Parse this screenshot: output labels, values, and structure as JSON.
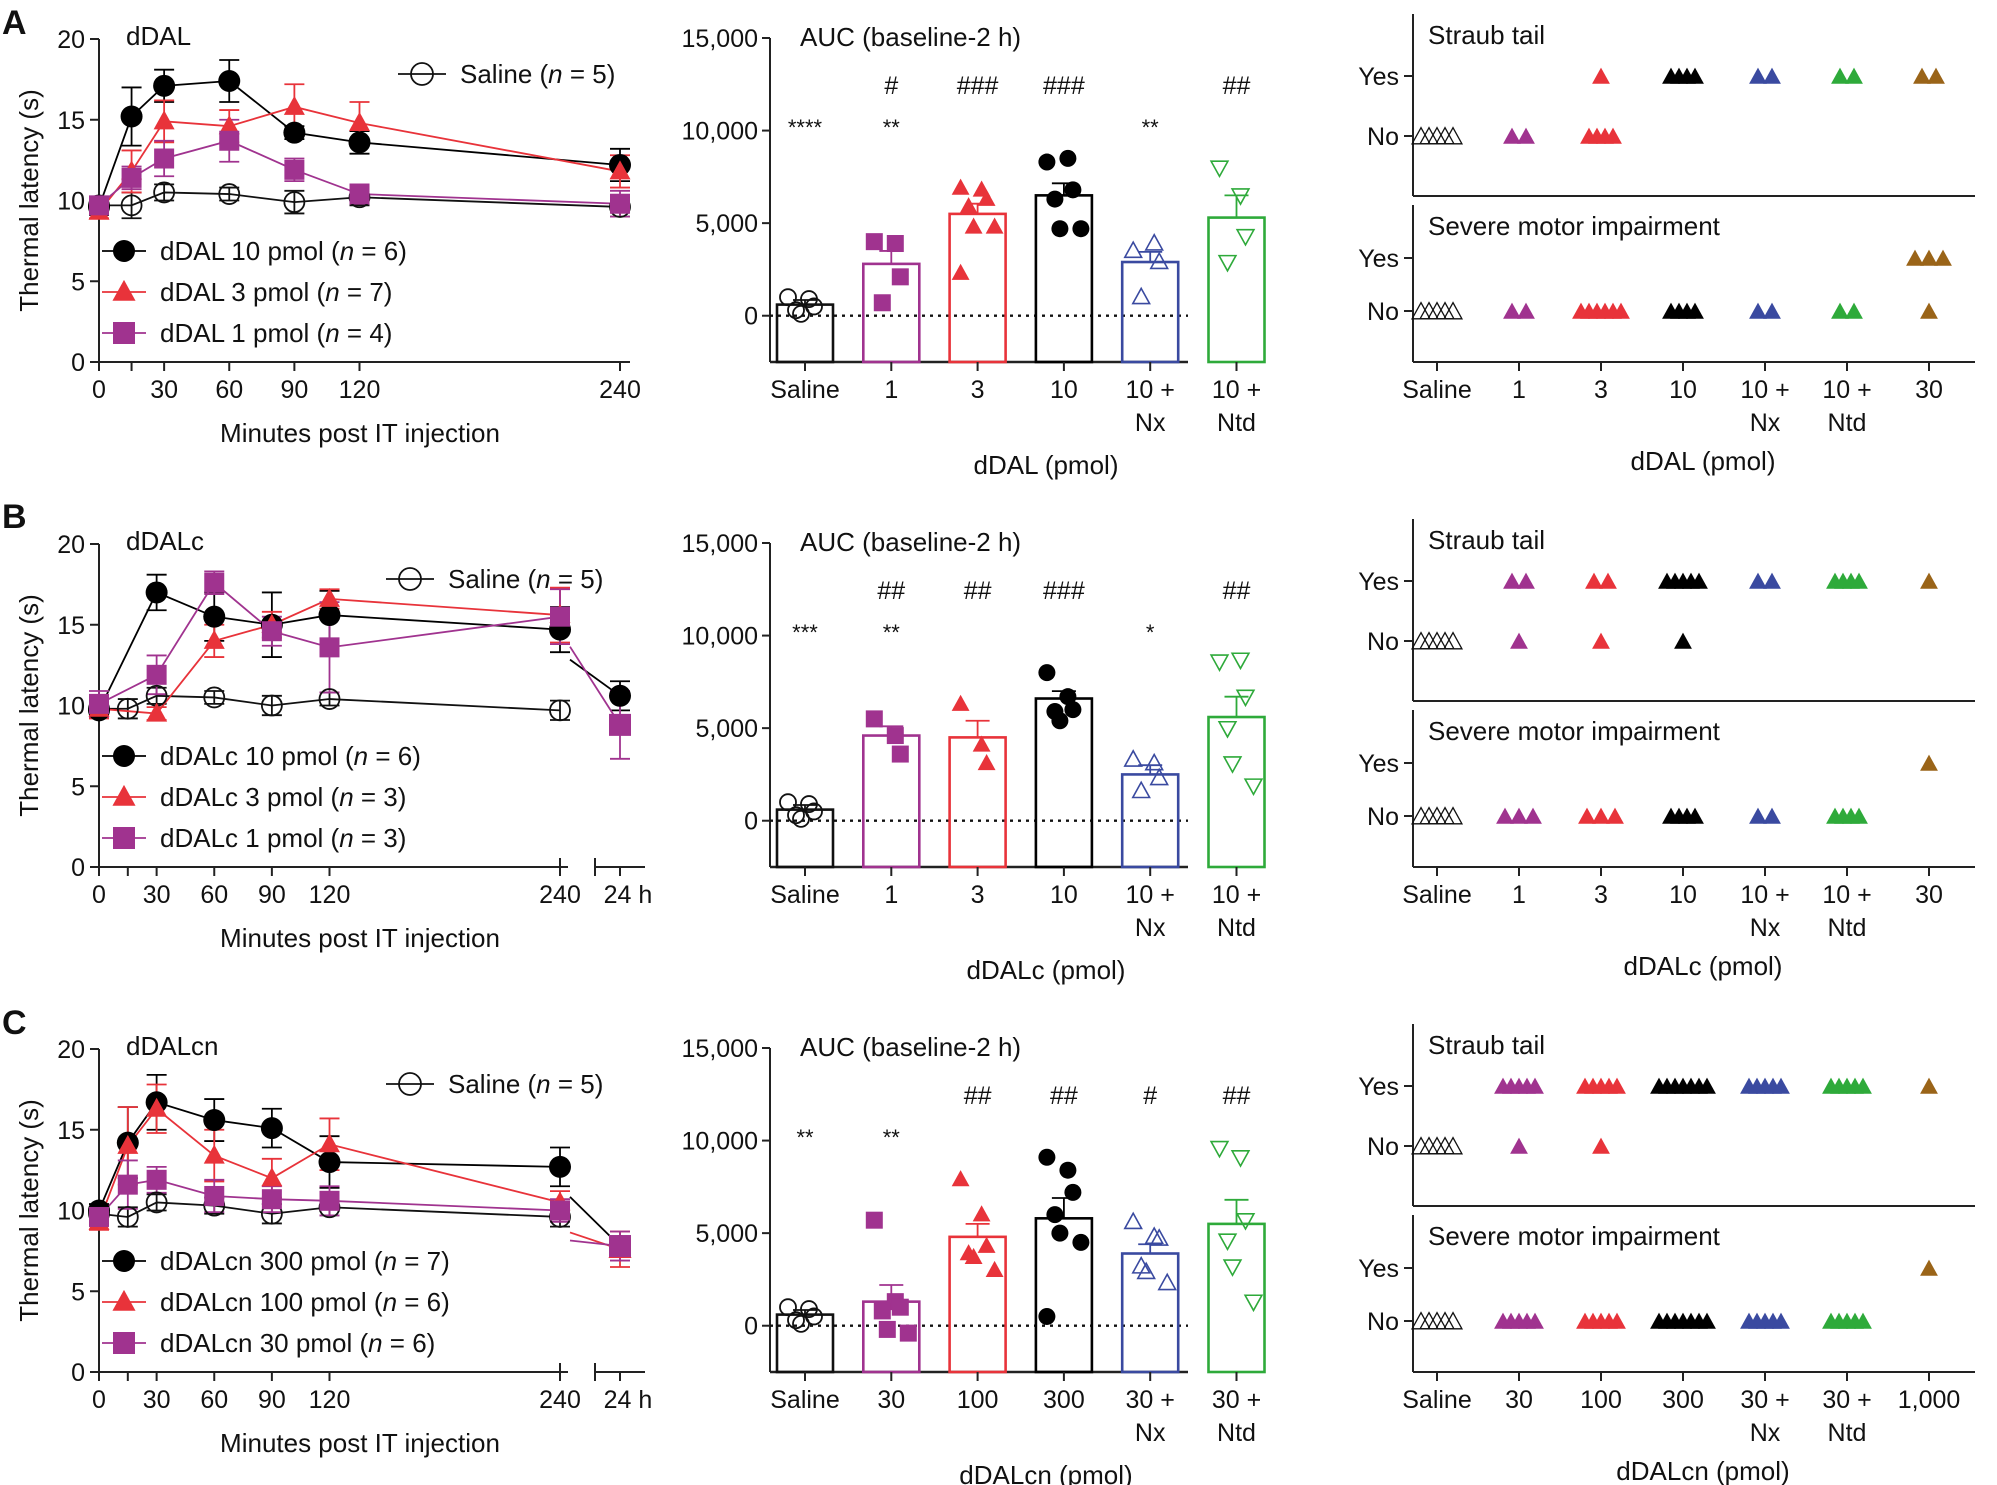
{
  "colors": {
    "saline": "#111111",
    "low": "#a0338f",
    "mid": "#e8333a",
    "high": "#000000",
    "nx": "#3a4aa0",
    "ntd": "#2eaa3a",
    "top": "#9a6418"
  },
  "chart_data": [
    {
      "panel": "A",
      "type": "line",
      "title": "dDAL",
      "xlabel": "Minutes post  IT injection",
      "ylabel": "Thermal latency (s)",
      "ylim": [
        0,
        20
      ],
      "yticks": [
        "0",
        "5",
        "10",
        "15",
        "20"
      ],
      "x_ticks": [
        0,
        15,
        30,
        60,
        90,
        120,
        240
      ],
      "x_tick_labels": [
        "0",
        "",
        "30",
        "60",
        "90",
        "120",
        "240"
      ],
      "has_24h": false,
      "legend_top": "top-right",
      "series": [
        {
          "name": "Saline",
          "n": "5",
          "label": "Saline (",
          "italic": "n",
          "suffix": " = 5)",
          "color_key": "saline",
          "marker": "open-circle",
          "x": [
            0,
            15,
            30,
            60,
            90,
            120,
            240
          ],
          "y": [
            9.7,
            9.7,
            10.5,
            10.4,
            9.9,
            10.2,
            9.6
          ],
          "err": [
            0.5,
            0.8,
            0.5,
            0.4,
            0.7,
            0.5,
            0.6
          ]
        },
        {
          "name": "dDAL 10 pmol",
          "label": "dDAL 10 pmol (",
          "italic": "n",
          "suffix": " = 6)",
          "color_key": "high",
          "marker": "circle",
          "x": [
            0,
            15,
            30,
            60,
            90,
            120,
            240
          ],
          "y": [
            9.6,
            15.2,
            17.1,
            17.4,
            14.2,
            13.6,
            12.2
          ],
          "err": [
            0.5,
            1.8,
            1.0,
            1.3,
            0.4,
            0.7,
            1.0
          ]
        },
        {
          "name": "dDAL 3 pmol",
          "label": "dDAL 3 pmol (",
          "italic": "n",
          "suffix": " = 7)",
          "color_key": "mid",
          "marker": "triangle",
          "x": [
            0,
            15,
            30,
            60,
            90,
            120,
            240
          ],
          "y": [
            9.3,
            11.8,
            14.9,
            14.6,
            15.8,
            14.8,
            11.8
          ],
          "err": [
            0.4,
            1.3,
            1.3,
            1.0,
            1.4,
            1.3,
            1.0
          ]
        },
        {
          "name": "dDAL 1 pmol",
          "label": "dDAL 1 pmol (",
          "italic": "n",
          "suffix": " = 4)",
          "color_key": "low",
          "marker": "square",
          "x": [
            0,
            15,
            30,
            60,
            90,
            120,
            240
          ],
          "y": [
            9.7,
            11.4,
            12.6,
            13.7,
            11.9,
            10.4,
            9.8
          ],
          "err": [
            0.4,
            0.7,
            1.1,
            1.3,
            0.7,
            0.6,
            0.8
          ]
        }
      ]
    },
    {
      "panel": "A",
      "type": "bar",
      "title": "AUC (baseline-2 h)",
      "xlabel": "dDAL (pmol)",
      "ylim": [
        -2500,
        15000
      ],
      "yticks": [
        "0",
        "5,000",
        "10,000",
        "15,000"
      ],
      "categories": [
        [
          "Saline"
        ],
        [
          "1"
        ],
        [
          "3"
        ],
        [
          "10"
        ],
        [
          "10 +",
          "Nx"
        ],
        [
          "10 +",
          "Ntd"
        ]
      ],
      "color_keys": [
        "saline",
        "low",
        "mid",
        "high",
        "nx",
        "ntd"
      ],
      "markers": [
        "open-circle",
        "square",
        "triangle",
        "circle",
        "open-triangle",
        "open-down-triangle"
      ],
      "values": [
        600,
        2800,
        5500,
        6500,
        2900,
        5300
      ],
      "sem": [
        250,
        700,
        550,
        650,
        550,
        1200
      ],
      "points": [
        [
          1000,
          900,
          500,
          300,
          100
        ],
        [
          4000,
          3900,
          2100,
          700
        ],
        [
          6900,
          6800,
          6300,
          5900,
          4800,
          4800,
          2300
        ],
        [
          8300,
          8500,
          6800,
          6300,
          4700,
          4700
        ],
        [
          3500,
          3900,
          2900,
          1000
        ],
        [
          8000,
          6500,
          4300,
          2900
        ]
      ],
      "stars": [
        "****",
        "**",
        "",
        "",
        "**",
        ""
      ],
      "hashes": [
        "",
        "#",
        "###",
        "###",
        "",
        "##"
      ]
    },
    {
      "panel": "A",
      "type": "scatter",
      "title_top": "Straub tail",
      "title_bottom": "Severe motor impairment",
      "ylevels": [
        "Yes",
        "No"
      ],
      "xlabel": "dDAL (pmol)",
      "categories": [
        [
          "Saline"
        ],
        [
          "1"
        ],
        [
          "3"
        ],
        [
          "10"
        ],
        [
          "10 +",
          "Nx"
        ],
        [
          "10 +",
          "Ntd"
        ],
        [
          "30"
        ]
      ],
      "color_keys": [
        "saline",
        "low",
        "mid",
        "high",
        "nx",
        "ntd",
        "top"
      ],
      "straub_yes": [
        0,
        0,
        1,
        4,
        2,
        2,
        2
      ],
      "straub_no": [
        5,
        2,
        4,
        0,
        0,
        0,
        0
      ],
      "motor_yes": [
        0,
        0,
        0,
        0,
        0,
        0,
        3
      ],
      "motor_no": [
        5,
        2,
        6,
        4,
        2,
        2,
        1
      ]
    },
    {
      "panel": "B",
      "type": "line",
      "title": "dDALc",
      "xlabel": "Minutes post IT injection",
      "ylabel": "Thermal latency (s)",
      "ylim": [
        0,
        20
      ],
      "yticks": [
        "0",
        "5",
        "10",
        "15",
        "20"
      ],
      "x_ticks": [
        0,
        15,
        30,
        60,
        90,
        120,
        240
      ],
      "x_tick_labels": [
        "0",
        "",
        "30",
        "60",
        "90",
        "120",
        "240"
      ],
      "has_24h": true,
      "label_24h": "24 h",
      "series": [
        {
          "name": "Saline",
          "label": "Saline (",
          "italic": "n",
          "suffix": " = 5)",
          "color_key": "saline",
          "marker": "open-circle",
          "x": [
            0,
            15,
            30,
            60,
            90,
            120,
            240
          ],
          "y": [
            9.8,
            9.8,
            10.6,
            10.5,
            10.0,
            10.4,
            9.7
          ],
          "err": [
            0.4,
            0.6,
            0.5,
            0.4,
            0.6,
            0.4,
            0.6
          ],
          "y24": null,
          "err24": null
        },
        {
          "name": "dDALc 10 pmol",
          "label": "dDALc 10 pmol (",
          "italic": "n",
          "suffix": " = 6)",
          "color_key": "high",
          "marker": "circle",
          "x": [
            0,
            15,
            30,
            60,
            90,
            120,
            240
          ],
          "y": [
            9.7,
            null,
            17.0,
            15.5,
            15.0,
            15.6,
            14.7
          ],
          "err": [
            0.4,
            null,
            1.1,
            1.5,
            2.0,
            1.5,
            1.4
          ],
          "y24": 10.6,
          "err24": 0.9
        },
        {
          "name": "dDALc 3 pmol",
          "label": "dDALc 3 pmol (",
          "italic": "n",
          "suffix": " = 3)",
          "color_key": "mid",
          "marker": "triangle",
          "x": [
            0,
            15,
            30,
            60,
            90,
            120,
            240
          ],
          "y": [
            9.8,
            null,
            9.5,
            14.0,
            15.0,
            16.6,
            15.6
          ],
          "err": [
            0.6,
            null,
            0.4,
            1.0,
            0.8,
            0.6,
            1.7
          ],
          "y24": null,
          "err24": null
        },
        {
          "name": "dDALc 1 pmol",
          "label": "dDALc 1 pmol (",
          "italic": "n",
          "suffix": " = 3)",
          "color_key": "low",
          "marker": "square",
          "x": [
            0,
            15,
            30,
            60,
            90,
            120,
            240
          ],
          "y": [
            10.1,
            null,
            11.9,
            17.6,
            14.6,
            13.6,
            15.5
          ],
          "err": [
            0.8,
            null,
            1.2,
            0.7,
            0.9,
            2.8,
            1.7
          ],
          "y24": 8.8,
          "err24": 2.1
        }
      ]
    },
    {
      "panel": "B",
      "type": "bar",
      "title": "AUC (baseline-2 h)",
      "xlabel": "dDALc (pmol)",
      "ylim": [
        -2500,
        15000
      ],
      "yticks": [
        "0",
        "5,000",
        "10,000",
        "15,000"
      ],
      "categories": [
        [
          "Saline"
        ],
        [
          "1"
        ],
        [
          "3"
        ],
        [
          "10"
        ],
        [
          "10 +",
          "Nx"
        ],
        [
          "10 +",
          "Ntd"
        ]
      ],
      "color_keys": [
        "saline",
        "low",
        "mid",
        "high",
        "nx",
        "ntd"
      ],
      "markers": [
        "open-circle",
        "square",
        "triangle",
        "circle",
        "open-triangle",
        "open-down-triangle"
      ],
      "values": [
        600,
        4600,
        4500,
        6600,
        2500,
        5600
      ],
      "sem": [
        250,
        500,
        900,
        400,
        500,
        1100
      ],
      "points": [
        [
          1000,
          900,
          500,
          300,
          100
        ],
        [
          5500,
          4600,
          3600
        ],
        [
          6300,
          4100,
          3100
        ],
        [
          8000,
          6700,
          6000,
          5900,
          5400
        ],
        [
          3300,
          3100,
          2300,
          1600
        ],
        [
          8600,
          8700,
          6700,
          5000,
          3100,
          1900
        ]
      ],
      "stars": [
        "***",
        "**",
        "",
        "",
        "*",
        ""
      ],
      "hashes": [
        "",
        "##",
        "##",
        "###",
        "",
        "##"
      ]
    },
    {
      "panel": "B",
      "type": "scatter",
      "title_top": "Straub tail",
      "title_bottom": "Severe motor impairment",
      "ylevels": [
        "Yes",
        "No"
      ],
      "xlabel": "dDALc (pmol)",
      "categories": [
        [
          "Saline"
        ],
        [
          "1"
        ],
        [
          "3"
        ],
        [
          "10"
        ],
        [
          "10 +",
          "Nx"
        ],
        [
          "10 +",
          "Ntd"
        ],
        [
          "30"
        ]
      ],
      "color_keys": [
        "saline",
        "low",
        "mid",
        "high",
        "nx",
        "ntd",
        "top"
      ],
      "straub_yes": [
        0,
        2,
        2,
        5,
        2,
        4,
        1
      ],
      "straub_no": [
        5,
        1,
        1,
        1,
        0,
        0,
        0
      ],
      "motor_yes": [
        0,
        0,
        0,
        0,
        0,
        0,
        1
      ],
      "motor_no": [
        5,
        3,
        3,
        4,
        2,
        4,
        0
      ]
    },
    {
      "panel": "C",
      "type": "line",
      "title": "dDALcn",
      "xlabel": "Minutes post IT injection",
      "ylabel": "Thermal latency (s)",
      "ylim": [
        0,
        20
      ],
      "yticks": [
        "0",
        "5",
        "10",
        "15",
        "20"
      ],
      "x_ticks": [
        0,
        15,
        30,
        60,
        90,
        120,
        240
      ],
      "x_tick_labels": [
        "0",
        "",
        "30",
        "60",
        "90",
        "120",
        "240"
      ],
      "has_24h": true,
      "label_24h": "24 h",
      "series": [
        {
          "name": "Saline",
          "label": "Saline (",
          "italic": "n",
          "suffix": " = 5)",
          "color_key": "saline",
          "marker": "open-circle",
          "x": [
            0,
            15,
            30,
            60,
            90,
            120,
            240
          ],
          "y": [
            9.8,
            9.6,
            10.5,
            10.3,
            9.8,
            10.2,
            9.6
          ],
          "err": [
            0.4,
            0.6,
            0.5,
            0.5,
            0.6,
            0.5,
            0.6
          ],
          "y24": null,
          "err24": null
        },
        {
          "name": "dDALcn 300 pmol",
          "label": "dDALcn 300 pmol (",
          "italic": "n",
          "suffix": " = 7)",
          "color_key": "high",
          "marker": "circle",
          "x": [
            0,
            15,
            30,
            60,
            90,
            120,
            240
          ],
          "y": [
            10.0,
            14.2,
            16.7,
            15.6,
            15.1,
            13.0,
            12.7
          ],
          "err": [
            0.4,
            2.2,
            1.7,
            1.3,
            1.2,
            1.6,
            1.2
          ],
          "y24": 7.8,
          "err24": 0.6
        },
        {
          "name": "dDALcn 100 pmol",
          "label": "dDALcn 100 pmol (",
          "italic": "n",
          "suffix": " = 6)",
          "color_key": "mid",
          "marker": "triangle",
          "x": [
            0,
            15,
            30,
            60,
            90,
            120,
            240
          ],
          "y": [
            9.3,
            14.0,
            16.3,
            13.4,
            12.0,
            14.1,
            10.5
          ],
          "err": [
            0.5,
            2.4,
            1.5,
            1.6,
            1.2,
            1.6,
            0.7
          ],
          "y24": 7.6,
          "err24": 1.1
        },
        {
          "name": "dDALcn 30 pmol",
          "label": "dDALcn 30 pmol (",
          "italic": "n",
          "suffix": " = 6)",
          "color_key": "low",
          "marker": "square",
          "x": [
            0,
            15,
            30,
            60,
            90,
            120,
            240
          ],
          "y": [
            9.6,
            11.6,
            11.9,
            10.9,
            10.7,
            10.6,
            10.0
          ],
          "err": [
            0.4,
            1.5,
            0.8,
            1.0,
            0.8,
            0.9,
            0.7
          ],
          "y24": 7.8,
          "err24": 0.9
        }
      ]
    },
    {
      "panel": "C",
      "type": "bar",
      "title": "AUC (baseline-2 h)",
      "xlabel": "dDALcn (pmol)",
      "ylim": [
        -2500,
        15000
      ],
      "yticks": [
        "0",
        "5,000",
        "10,000",
        "15,000"
      ],
      "categories": [
        [
          "Saline"
        ],
        [
          "30"
        ],
        [
          "100"
        ],
        [
          "300"
        ],
        [
          "30 +",
          "Nx"
        ],
        [
          "30 +",
          "Ntd"
        ]
      ],
      "color_keys": [
        "saline",
        "low",
        "mid",
        "high",
        "nx",
        "ntd"
      ],
      "markers": [
        "open-circle",
        "square",
        "triangle",
        "circle",
        "open-triangle",
        "open-down-triangle"
      ],
      "values": [
        600,
        1300,
        4800,
        5800,
        3900,
        5500
      ],
      "sem": [
        250,
        900,
        700,
        1100,
        500,
        1300
      ],
      "points": [
        [
          1000,
          900,
          500,
          300,
          100
        ],
        [
          5700,
          1300,
          1000,
          800,
          -200,
          -400
        ],
        [
          7900,
          6000,
          4300,
          3900,
          3700,
          3000
        ],
        [
          9100,
          8400,
          7200,
          6000,
          5000,
          4500,
          500
        ],
        [
          5600,
          4800,
          4700,
          3200,
          2900,
          2300
        ],
        [
          9600,
          9100,
          5700,
          4600,
          3200,
          1300
        ]
      ],
      "stars": [
        "**",
        "**",
        "",
        "",
        "",
        ""
      ],
      "hashes": [
        "",
        "",
        "##",
        "##",
        "#",
        "##"
      ]
    },
    {
      "panel": "C",
      "type": "scatter",
      "title_top": "Straub tail",
      "title_bottom": "Severe motor impairment",
      "ylevels": [
        "Yes",
        "No"
      ],
      "xlabel": "dDALcn (pmol)",
      "categories": [
        [
          "Saline"
        ],
        [
          "30"
        ],
        [
          "100"
        ],
        [
          "300"
        ],
        [
          "30 +",
          "Nx"
        ],
        [
          "30 +",
          "Ntd"
        ],
        [
          "1,000"
        ]
      ],
      "color_keys": [
        "saline",
        "low",
        "mid",
        "high",
        "nx",
        "ntd",
        "top"
      ],
      "straub_yes": [
        0,
        5,
        5,
        7,
        5,
        5,
        1
      ],
      "straub_no": [
        5,
        1,
        1,
        0,
        0,
        0,
        0
      ],
      "motor_yes": [
        0,
        0,
        0,
        0,
        0,
        0,
        1
      ],
      "motor_no": [
        5,
        5,
        5,
        7,
        5,
        5,
        0
      ]
    }
  ],
  "panel_letters": [
    "A",
    "B",
    "C"
  ]
}
